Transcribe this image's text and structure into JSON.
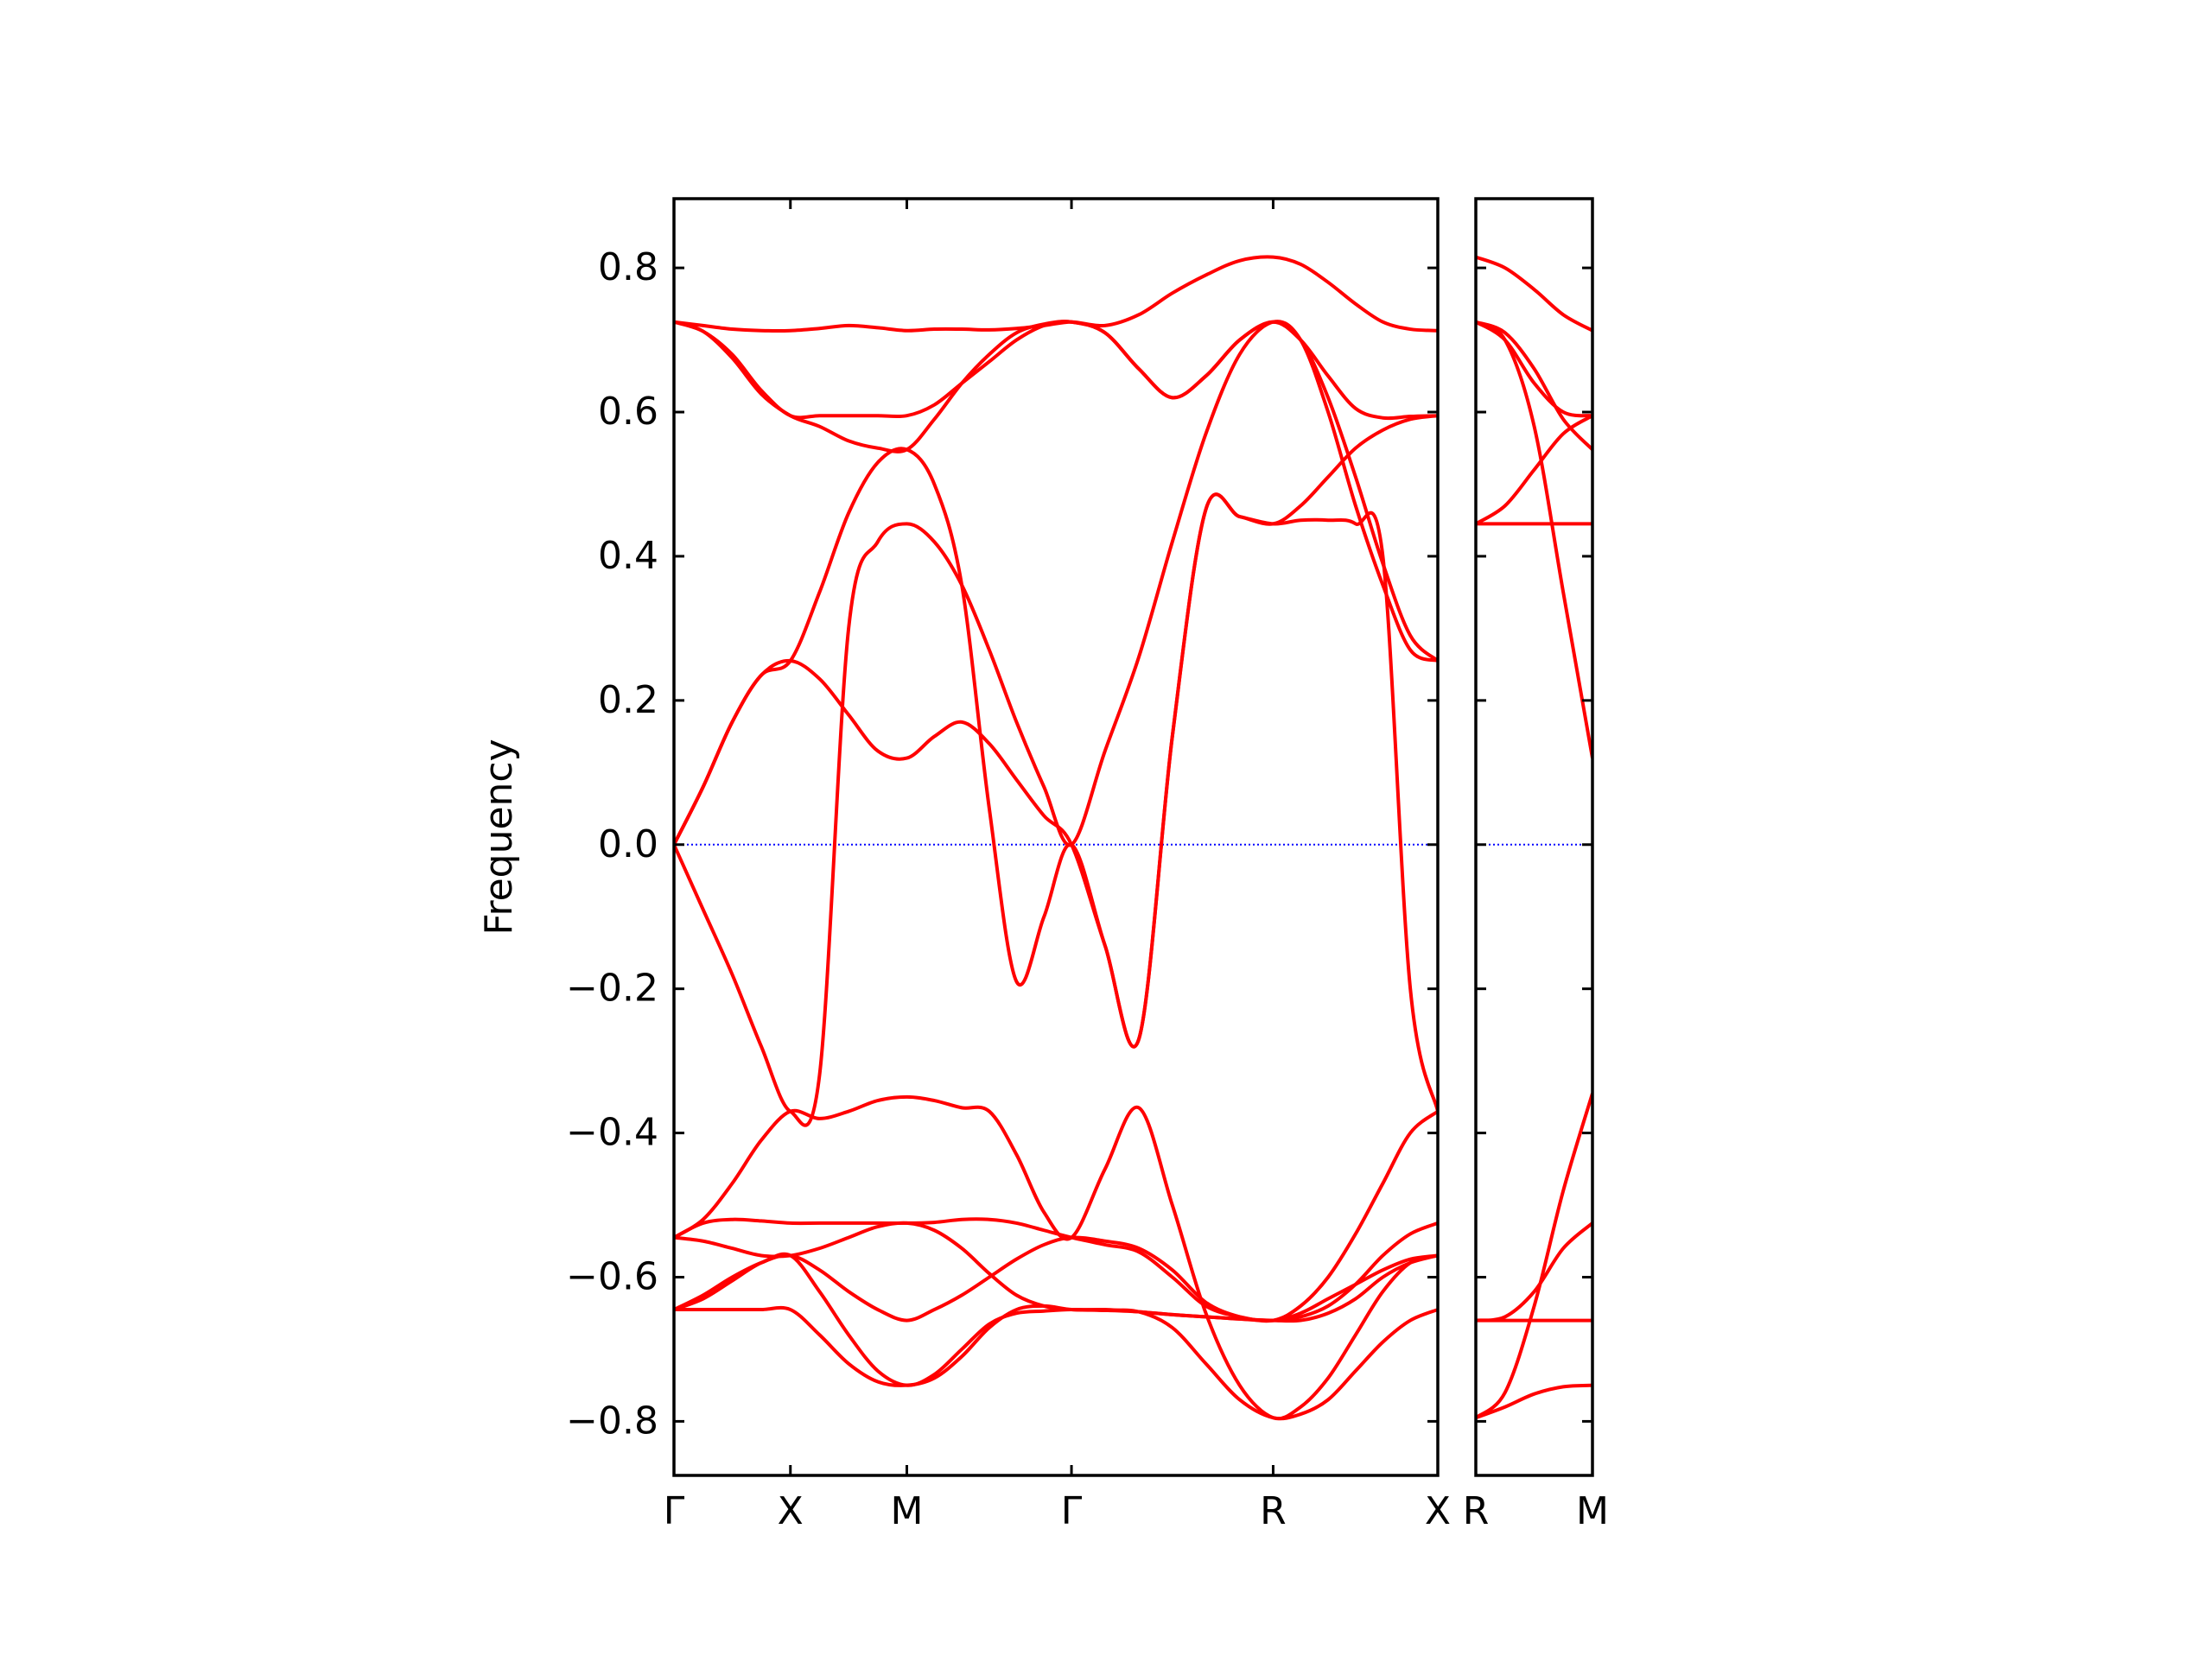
{
  "chart_data": [
    {
      "type": "line",
      "ylabel": "Frequency",
      "color": "#ff0000",
      "xlim": [
        0,
        3.28
      ],
      "ylim": [
        -0.875,
        0.896
      ],
      "xticks": [
        {
          "value": 0,
          "label": "Γ"
        },
        {
          "value": 0.5,
          "label": "X"
        },
        {
          "value": 1.0,
          "label": "M"
        },
        {
          "value": 1.707,
          "label": "Γ"
        },
        {
          "value": 2.573,
          "label": "R"
        },
        {
          "value": 3.28,
          "label": "X"
        }
      ],
      "yticks": [
        {
          "value": -0.8,
          "label": "−0.8"
        },
        {
          "value": -0.6,
          "label": "−0.6"
        },
        {
          "value": -0.4,
          "label": "−0.4"
        },
        {
          "value": -0.2,
          "label": "−0.2"
        },
        {
          "value": 0,
          "label": "0.0"
        },
        0.2,
        0.4,
        0.6,
        0.8
      ],
      "hline": {
        "value": 0,
        "color": "#0000ff",
        "style": "dotted"
      },
      "x": [
        0,
        0.125,
        0.25,
        0.375,
        0.5,
        0.625,
        0.75,
        0.875,
        1.0,
        1.118,
        1.236,
        1.354,
        1.471,
        1.589,
        1.707,
        1.851,
        1.996,
        2.14,
        2.284,
        2.429,
        2.573,
        2.691,
        2.809,
        2.927,
        3.044,
        3.162,
        3.28
      ],
      "series": [
        {
          "values": [
            0.725,
            0.72,
            0.715,
            0.713,
            0.713,
            0.716,
            0.72,
            0.717,
            0.713,
            0.715,
            0.715,
            0.714,
            0.716,
            0.72,
            0.725,
            0.72,
            0.735,
            0.765,
            0.79,
            0.81,
            0.815,
            0.805,
            0.78,
            0.75,
            0.725,
            0.715,
            0.713
          ]
        },
        {
          "values": [
            0.725,
            0.712,
            0.68,
            0.63,
            0.595,
            0.595,
            0.595,
            0.595,
            0.595,
            0.61,
            0.64,
            0.67,
            0.7,
            0.72,
            0.725,
            0.71,
            0.66,
            0.62,
            0.65,
            0.7,
            0.725,
            0.7,
            0.65,
            0.605,
            0.592,
            0.594,
            0.595
          ]
        },
        {
          "values": [
            0.725,
            0.712,
            0.675,
            0.625,
            0.595,
            0.58,
            0.56,
            0.55,
            0.548,
            0.59,
            0.64,
            0.68,
            0.71,
            0.722,
            0.725,
            0.71,
            0.66,
            0.62,
            0.65,
            0.7,
            0.725,
            0.7,
            0.62,
            0.51,
            0.39,
            0.29,
            0.255
          ]
        },
        {
          "values": [
            0,
            0.08,
            0.17,
            0.235,
            0.255,
            0.35,
            0.46,
            0.53,
            0.548,
            0.5,
            0.36,
            0.05,
            -0.19,
            -0.1,
            0,
            -0.14,
            -0.27,
            0.15,
            0.465,
            0.455,
            0.445,
            0.47,
            0.51,
            0.55,
            0.575,
            0.59,
            0.595
          ]
        },
        {
          "values": [
            0,
            -0.09,
            -0.18,
            -0.28,
            -0.37,
            -0.32,
            0.3,
            0.42,
            0.445,
            0.42,
            0.36,
            0.27,
            0.17,
            0.08,
            0,
            0.13,
            0.26,
            0.42,
            0.57,
            0.68,
            0.725,
            0.7,
            0.6,
            0.47,
            0.36,
            0.27,
            0.255
          ]
        },
        {
          "values": [
            0,
            0.08,
            0.17,
            0.235,
            0.255,
            0.23,
            0.18,
            0.13,
            0.12,
            0.15,
            0.17,
            0.14,
            0.09,
            0.04,
            0,
            -0.14,
            -0.27,
            0.15,
            0.465,
            0.455,
            0.445,
            0.45,
            0.45,
            0.445,
            0.4,
            -0.2,
            -0.37
          ]
        },
        {
          "values": [
            -0.545,
            -0.52,
            -0.47,
            -0.41,
            -0.37,
            -0.38,
            -0.37,
            -0.355,
            -0.35,
            -0.355,
            -0.365,
            -0.37,
            -0.43,
            -0.51,
            -0.545,
            -0.45,
            -0.365,
            -0.5,
            -0.65,
            -0.75,
            -0.795,
            -0.78,
            -0.74,
            -0.68,
            -0.62,
            -0.58,
            -0.57
          ]
        },
        {
          "values": [
            -0.545,
            -0.525,
            -0.52,
            -0.522,
            -0.525,
            -0.525,
            -0.525,
            -0.525,
            -0.525,
            -0.524,
            -0.52,
            -0.52,
            -0.525,
            -0.535,
            -0.545,
            -0.555,
            -0.565,
            -0.6,
            -0.64,
            -0.655,
            -0.66,
            -0.64,
            -0.6,
            -0.54,
            -0.47,
            -0.4,
            -0.37
          ]
        },
        {
          "values": [
            -0.545,
            -0.55,
            -0.56,
            -0.57,
            -0.57,
            -0.56,
            -0.545,
            -0.53,
            -0.525,
            -0.535,
            -0.56,
            -0.595,
            -0.625,
            -0.64,
            -0.645,
            -0.645,
            -0.648,
            -0.652,
            -0.655,
            -0.658,
            -0.66,
            -0.655,
            -0.64,
            -0.61,
            -0.57,
            -0.54,
            -0.525
          ]
        },
        {
          "values": [
            -0.645,
            -0.63,
            -0.605,
            -0.58,
            -0.57,
            -0.59,
            -0.62,
            -0.645,
            -0.66,
            -0.645,
            -0.625,
            -0.6,
            -0.575,
            -0.555,
            -0.545,
            -0.55,
            -0.56,
            -0.59,
            -0.635,
            -0.655,
            -0.66,
            -0.65,
            -0.63,
            -0.61,
            -0.59,
            -0.575,
            -0.57
          ]
        },
        {
          "values": [
            -0.645,
            -0.645,
            -0.645,
            -0.645,
            -0.645,
            -0.68,
            -0.72,
            -0.745,
            -0.75,
            -0.74,
            -0.71,
            -0.67,
            -0.645,
            -0.64,
            -0.645,
            -0.646,
            -0.648,
            -0.67,
            -0.72,
            -0.77,
            -0.795,
            -0.79,
            -0.77,
            -0.73,
            -0.69,
            -0.66,
            -0.645
          ]
        },
        {
          "values": [
            -0.645,
            -0.625,
            -0.6,
            -0.58,
            -0.57,
            -0.62,
            -0.68,
            -0.73,
            -0.75,
            -0.735,
            -0.7,
            -0.665,
            -0.65,
            -0.647,
            -0.645,
            -0.646,
            -0.648,
            -0.652,
            -0.655,
            -0.658,
            -0.66,
            -0.66,
            -0.65,
            -0.63,
            -0.6,
            -0.58,
            -0.57
          ]
        }
      ]
    },
    {
      "type": "line",
      "color": "#ff0000",
      "xlim": [
        0,
        0.707
      ],
      "ylim": [
        -0.875,
        0.896
      ],
      "xticks": [
        {
          "value": 0,
          "label": "R"
        },
        {
          "value": 0.707,
          "label": "M"
        }
      ],
      "yticks": [
        -0.8,
        -0.6,
        -0.4,
        -0.2,
        0,
        0.2,
        0.4,
        0.6,
        0.8
      ],
      "hline": {
        "value": 0,
        "color": "#0000ff",
        "style": "dotted"
      },
      "x": [
        0,
        0.177,
        0.354,
        0.53,
        0.707
      ],
      "series": [
        {
          "values": [
            0.815,
            0.8,
            0.77,
            0.735,
            0.713
          ]
        },
        {
          "values": [
            0.725,
            0.71,
            0.66,
            0.59,
            0.548
          ]
        },
        {
          "values": [
            0.725,
            0.7,
            0.64,
            0.6,
            0.595
          ]
        },
        {
          "values": [
            0.725,
            0.7,
            0.58,
            0.35,
            0.12
          ]
        },
        {
          "values": [
            0.445,
            0.47,
            0.52,
            0.57,
            0.595
          ]
        },
        {
          "values": [
            0.445,
            0.445,
            0.445,
            0.445,
            0.445
          ]
        },
        {
          "values": [
            -0.795,
            -0.76,
            -0.64,
            -0.48,
            -0.345
          ]
        },
        {
          "values": [
            -0.66,
            -0.655,
            -0.62,
            -0.56,
            -0.525
          ]
        },
        {
          "values": [
            -0.66,
            -0.66,
            -0.66,
            -0.66,
            -0.66
          ]
        },
        {
          "values": [
            -0.795,
            -0.78,
            -0.762,
            -0.752,
            -0.75
          ]
        }
      ]
    }
  ]
}
